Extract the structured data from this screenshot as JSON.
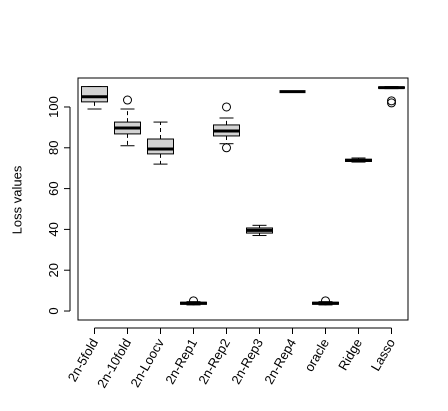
{
  "chart_data": {
    "type": "boxplot",
    "ylabel": "Loss values",
    "categories": [
      "2n-5fold",
      "2n-10fold",
      "2n-Loocv",
      "2n-Rep1",
      "2n-Rep2",
      "2n-Rep3",
      "2n-Rep4",
      "oracle",
      "Ridge",
      "Lasso"
    ],
    "boxes": [
      {
        "min": 99,
        "q1": 102.5,
        "median": 105,
        "q3": 110,
        "max": 110,
        "outliers": []
      },
      {
        "min": 81,
        "q1": 86.8,
        "median": 89.7,
        "q3": 92.6,
        "max": 99,
        "outliers": [
          103.4
        ]
      },
      {
        "min": 72,
        "q1": 77,
        "median": 79.4,
        "q3": 84.3,
        "max": 92.6,
        "outliers": []
      },
      {
        "min": 3,
        "q1": 3.3,
        "median": 3.8,
        "q3": 4.3,
        "max": 4.6,
        "outliers": [
          5
        ]
      },
      {
        "min": 82,
        "q1": 85.8,
        "median": 88.2,
        "q3": 91.2,
        "max": 94.6,
        "outliers": [
          100,
          80
        ]
      },
      {
        "min": 37,
        "q1": 38.2,
        "median": 39.5,
        "q3": 40.7,
        "max": 42,
        "outliers": []
      },
      {
        "min": 107.5,
        "q1": 107.5,
        "median": 107.5,
        "q3": 107.5,
        "max": 107.5,
        "outliers": []
      },
      {
        "min": 3,
        "q1": 3.3,
        "median": 3.8,
        "q3": 4.3,
        "max": 4.6,
        "outliers": [
          5
        ]
      },
      {
        "min": 73,
        "q1": 73.3,
        "median": 73.8,
        "q3": 74.4,
        "max": 75,
        "outliers": []
      },
      {
        "min": 109,
        "q1": 109.2,
        "median": 109.5,
        "q3": 109.8,
        "max": 110,
        "outliers": [
          102,
          103
        ]
      }
    ],
    "color": "#d3d3d3",
    "ylim": [
      -4.4,
      114.2
    ],
    "yticks": [
      0,
      20,
      40,
      60,
      80,
      100
    ]
  }
}
